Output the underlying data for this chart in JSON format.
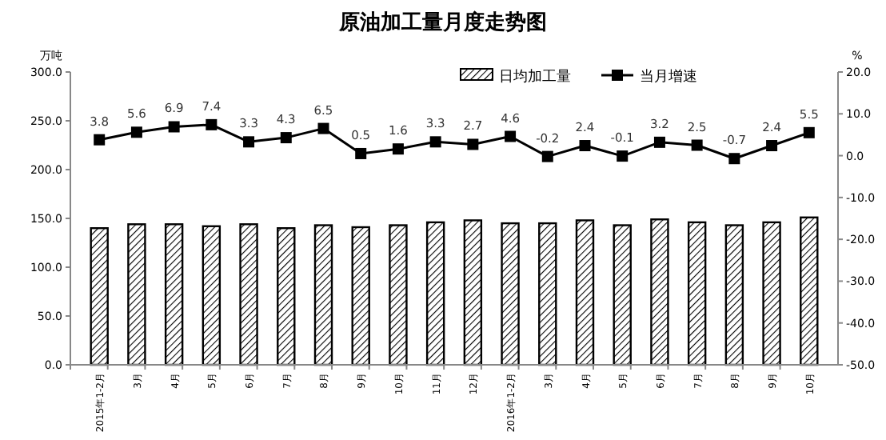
{
  "chart_data": {
    "type": "bar",
    "title": "原油加工量月度走势图",
    "ylabel": "万吨",
    "y2label": "%",
    "categories": [
      "2015年1-2月",
      "3月",
      "4月",
      "5月",
      "6月",
      "7月",
      "8月",
      "9月",
      "10月",
      "11月",
      "12月",
      "2016年1-2月",
      "3月",
      "4月",
      "5月",
      "6月",
      "7月",
      "8月",
      "9月",
      "10月"
    ],
    "series": [
      {
        "name": "日均加工量",
        "color": "#000000",
        "values": [
          140,
          144,
          144,
          142,
          144,
          140,
          143,
          141,
          143,
          146,
          148,
          145,
          145,
          148,
          143,
          149,
          146,
          143,
          146,
          151
        ]
      },
      {
        "name": "当月增速",
        "type": "line",
        "axis": "y2",
        "color": "#000000",
        "marker": "square",
        "data_labels": true,
        "values": [
          3.8,
          5.6,
          6.9,
          7.4,
          3.3,
          4.3,
          6.5,
          0.5,
          1.6,
          3.3,
          2.7,
          4.6,
          -0.2,
          2.4,
          -0.1,
          3.2,
          2.5,
          -0.7,
          2.4,
          5.5
        ]
      }
    ],
    "ylim": [
      0,
      300
    ],
    "yticks": [
      {
        "value": 0,
        "label": "0.0"
      },
      {
        "value": 50,
        "label": "50.0"
      },
      {
        "value": 100,
        "label": "100.0"
      },
      {
        "value": 150,
        "label": "150.0"
      },
      {
        "value": 200,
        "label": "200.0"
      },
      {
        "value": 250,
        "label": "250.0"
      },
      {
        "value": 300,
        "label": "300.0"
      }
    ],
    "y2lim": [
      -50,
      20
    ],
    "y2ticks": [
      {
        "value": -50,
        "label": "-50.0"
      },
      {
        "value": -40,
        "label": "-40.0"
      },
      {
        "value": -30,
        "label": "-30.0"
      },
      {
        "value": -20,
        "label": "-20.0"
      },
      {
        "value": -10,
        "label": "-10.0"
      },
      {
        "value": 0,
        "label": "0.0"
      },
      {
        "value": 10,
        "label": "10.0"
      },
      {
        "value": 20,
        "label": "20.0"
      }
    ],
    "legend": "top right",
    "grid": false
  }
}
